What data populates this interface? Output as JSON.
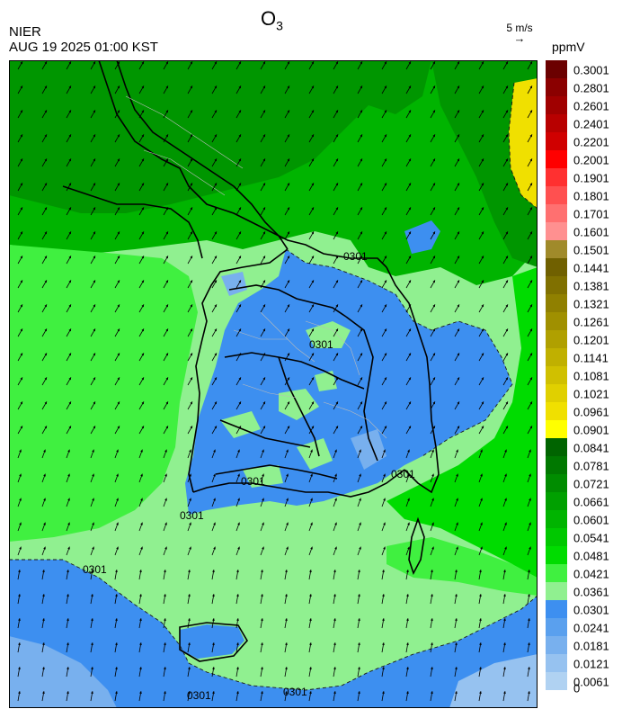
{
  "header": {
    "agency": "NIER",
    "datetime": "AUG 19 2025 01:00 KST",
    "title_main": "O",
    "title_sub": "3",
    "vector_label": "5 m/s",
    "vector_arrow": "→",
    "unit": "ppmV"
  },
  "contour_label": "0301",
  "colorbar": {
    "labels": [
      "0.3001",
      "0.2801",
      "0.2601",
      "0.2401",
      "0.2201",
      "0.2001",
      "0.1901",
      "0.1801",
      "0.1701",
      "0.1601",
      "0.1501",
      "0.1441",
      "0.1381",
      "0.1321",
      "0.1261",
      "0.1201",
      "0.1141",
      "0.1081",
      "0.1021",
      "0.0961",
      "0.0901",
      "0.0841",
      "0.0781",
      "0.0721",
      "0.0661",
      "0.0601",
      "0.0541",
      "0.0481",
      "0.0421",
      "0.0361",
      "0.0301",
      "0.0241",
      "0.0181",
      "0.0121",
      "0.0061",
      "0"
    ],
    "colors": [
      "#6b0000",
      "#8b0000",
      "#a00000",
      "#b80000",
      "#d00000",
      "#ff0000",
      "#ff3030",
      "#ff5050",
      "#ff7070",
      "#ff9090",
      "#a08a2a",
      "#706000",
      "#807000",
      "#908000",
      "#a09000",
      "#b0a000",
      "#c0b000",
      "#d0c000",
      "#e0d000",
      "#f0e000",
      "#ffff00",
      "#006400",
      "#007800",
      "#008c00",
      "#00a000",
      "#00b400",
      "#00c800",
      "#00dc00",
      "#40f040",
      "#90f090",
      "#3d8ff0",
      "#5aa0ee",
      "#78b0ee",
      "#96c2f0",
      "#b0d2f2"
    ]
  }
}
